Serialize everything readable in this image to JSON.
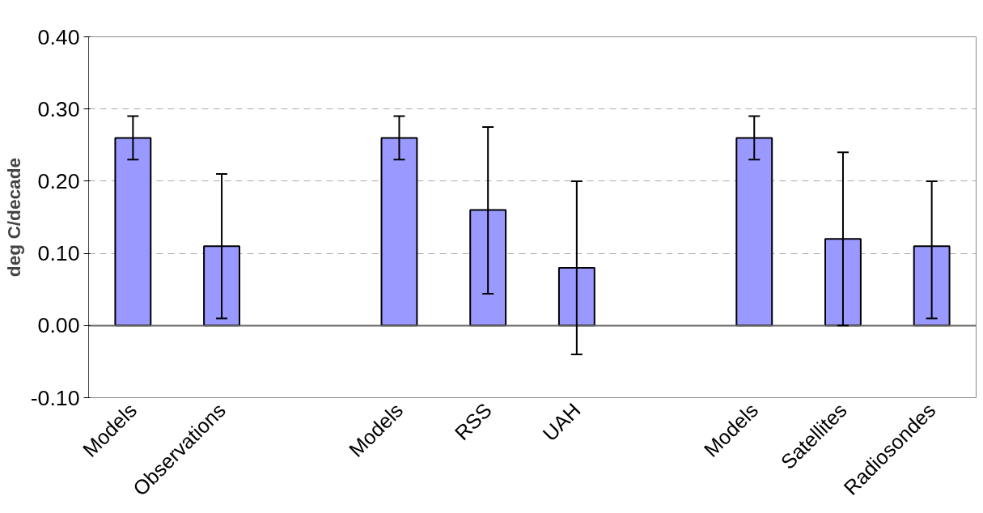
{
  "chart_data": {
    "type": "bar",
    "ylabel": "deg C/decade",
    "categories": [
      "Models",
      "Observations",
      null,
      "Models",
      "RSS",
      "UAH",
      null,
      "Models",
      "Satellites",
      "Radiosondes"
    ],
    "values": [
      0.26,
      0.11,
      null,
      0.26,
      0.16,
      0.08,
      null,
      0.26,
      0.12,
      0.11
    ],
    "errors": [
      [
        0.23,
        0.29
      ],
      [
        0.01,
        0.21
      ],
      null,
      [
        0.23,
        0.29
      ],
      [
        0.044,
        0.275
      ],
      [
        -0.04,
        0.2
      ],
      null,
      [
        0.23,
        0.29
      ],
      [
        0.0,
        0.24
      ],
      [
        0.01,
        0.2
      ]
    ],
    "color": "#9999ff",
    "ylim": [
      -0.1,
      0.4
    ],
    "yticks": [
      {
        "value": -0.1,
        "label": "-0.10"
      },
      {
        "value": 0,
        "label": "0.00"
      },
      {
        "value": 0.1,
        "label": "0.10"
      },
      {
        "value": 0.2,
        "label": "0.20"
      },
      {
        "value": 0.3,
        "label": "0.30"
      },
      {
        "value": 0.4,
        "label": "0.40"
      }
    ],
    "grid": "y"
  }
}
